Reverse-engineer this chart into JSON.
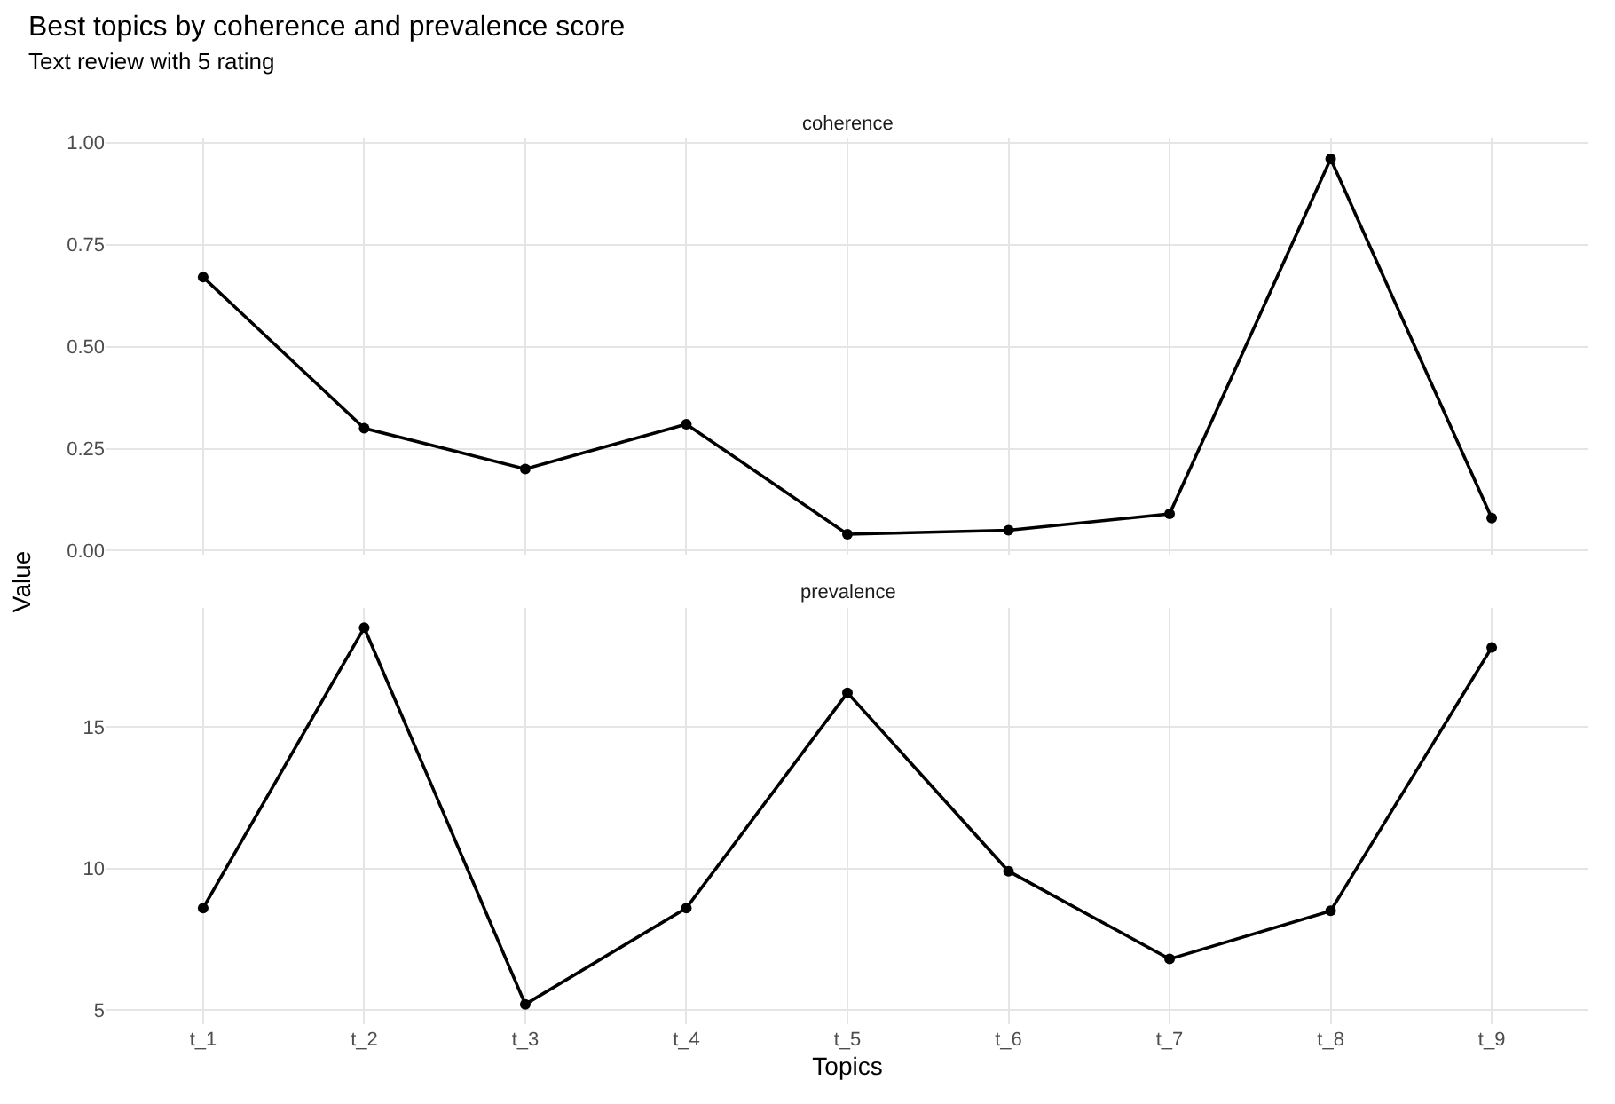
{
  "chart_data": [
    {
      "type": "line",
      "title": "Best topics by coherence and prevalence score",
      "subtitle": "Text review with 5 rating",
      "ylabel": "Value",
      "annotations": [
        "coherence"
      ],
      "categories": [
        null,
        null,
        null,
        null,
        null,
        null,
        null,
        null,
        null
      ],
      "series": [
        {
          "color": "#000000",
          "values": [
            0.67,
            0.3,
            0.2,
            0.31,
            0.04,
            0.05,
            0.09,
            0.96,
            0.08
          ]
        }
      ],
      "ylim": [
        -0.01,
        1.01
      ],
      "yticks": [
        {
          "value": 0,
          "label": "0.00"
        },
        0.25,
        {
          "value": 0.5,
          "label": "0.50"
        },
        0.75,
        {
          "value": 1,
          "label": "1.00"
        }
      ],
      "grid": true,
      "marker": "circle",
      "line_style": "solid",
      "tick_labels": "y"
    },
    {
      "type": "line",
      "xlabel": "Topics",
      "annotations": [
        "prevalence"
      ],
      "categories": [
        "t_1",
        "t_2",
        "t_3",
        "t_4",
        "t_5",
        "t_6",
        "t_7",
        "t_8",
        "t_9"
      ],
      "series": [
        {
          "color": "#000000",
          "values": [
            8.6,
            18.5,
            5.2,
            8.6,
            16.2,
            9.9,
            6.8,
            8.5,
            17.8
          ]
        }
      ],
      "ylim": [
        4.5,
        19.2
      ],
      "yticks": [
        5,
        10,
        15
      ],
      "grid": true,
      "marker": "circle",
      "line_style": "solid"
    }
  ]
}
